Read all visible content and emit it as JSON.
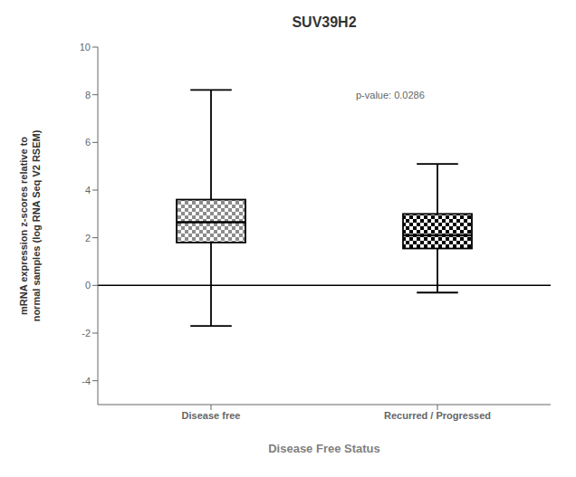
{
  "chart_data": {
    "type": "box",
    "title": "SUV39H2",
    "xlabel": "Disease Free Status",
    "ylabel": "mRNA expression z-scores relative to\nnormal samples (log RNA Seq V2 RSEM)",
    "categories": [
      "Disease free",
      "Recurred / Progressed"
    ],
    "boxes": [
      {
        "whisker_low": -1.7,
        "q1": 1.8,
        "median": 2.65,
        "q3": 3.6,
        "whisker_high": 8.2
      },
      {
        "whisker_low": -0.3,
        "q1": 1.55,
        "median": 2.1,
        "q3": 3.0,
        "whisker_high": 5.1
      }
    ],
    "colors": [
      "#8c8c8c",
      "#000000"
    ],
    "hline": 0,
    "ylim": [
      -5,
      10
    ],
    "yticks": [
      -4,
      -2,
      0,
      2,
      4,
      6,
      8,
      10
    ],
    "grid": false,
    "annotations": [
      {
        "text": "p-value: 0.0286"
      }
    ]
  }
}
